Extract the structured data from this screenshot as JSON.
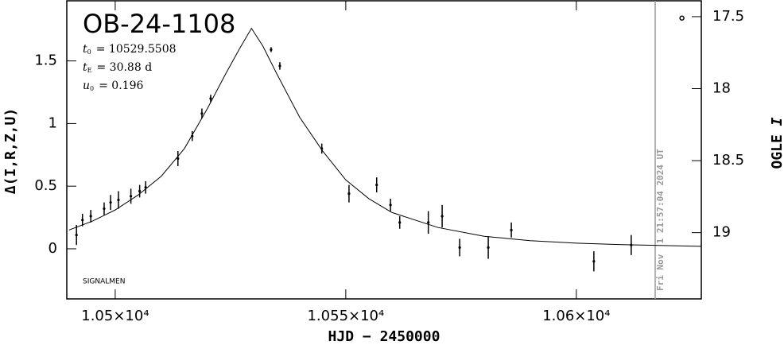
{
  "chart_data": {
    "type": "lightcurve",
    "title": "OB-24-1108",
    "params": [
      {
        "symbol": "t",
        "subscript": "0",
        "text": "= 10529.5508"
      },
      {
        "symbol": "t",
        "subscript": "E",
        "text": "= 30.88 d"
      },
      {
        "symbol": "u",
        "subscript": "0",
        "text": "= 0.196"
      }
    ],
    "credit": "SIGNALMEN",
    "x_label": "HJD − 2450000",
    "y_label": "Δ(I,R,Z,U)",
    "y2_label": {
      "name": "OGLE",
      "symbol": "I"
    },
    "date_line": {
      "x": 10617.1,
      "label": "Fri Nov  1 21:57:04 2024 UT",
      "color": "#999999"
    },
    "xlim": [
      10489.5,
      10627.1
    ],
    "xticks": [
      {
        "value": 10500,
        "label": "1.05×10⁴"
      },
      {
        "value": 10550,
        "label": "1.055×10⁴"
      },
      {
        "value": 10600,
        "label": "1.06×10⁴"
      }
    ],
    "ylim": [
      -0.4,
      1.98
    ],
    "yticks": [
      0,
      0.5,
      1,
      1.5
    ],
    "y2lim": [
      19.46,
      17.39
    ],
    "y2ticks": [
      17.5,
      18,
      18.5,
      19
    ],
    "grid": false,
    "color": "#000000",
    "points": {
      "x": [
        10491.6,
        10492.9,
        10494.7,
        10497.6,
        10499.0,
        10500.7,
        10503.4,
        10505.3,
        10506.6,
        10513.6,
        10516.7,
        10518.8,
        10520.7,
        10533.8,
        10535.7,
        10544.8,
        10550.7,
        10556.7,
        10559.7,
        10561.7,
        10567.9,
        10570.9,
        10574.7,
        10580.9,
        10585.9,
        10603.8,
        10611.9
      ],
      "values": [
        0.11,
        0.23,
        0.26,
        0.32,
        0.37,
        0.39,
        0.42,
        0.46,
        0.49,
        0.72,
        0.9,
        1.08,
        1.2,
        1.59,
        1.46,
        0.8,
        0.44,
        0.51,
        0.35,
        0.21,
        0.21,
        0.26,
        0.01,
        0.01,
        0.15,
        -0.1,
        0.03
      ],
      "errors": [
        0.08,
        0.05,
        0.05,
        0.05,
        0.06,
        0.07,
        0.06,
        0.05,
        0.05,
        0.06,
        0.04,
        0.04,
        0.03,
        0.02,
        0.03,
        0.04,
        0.07,
        0.06,
        0.05,
        0.05,
        0.09,
        0.09,
        0.07,
        0.09,
        0.06,
        0.08,
        0.08
      ]
    },
    "ogle_point": {
      "x": [
        10622.9
      ],
      "values": [
        17.51
      ],
      "axis": "y2"
    },
    "model": {
      "x": [
        10490,
        10495,
        10500,
        10505,
        10510,
        10515,
        10520,
        10524,
        10527,
        10529.55,
        10532,
        10535,
        10540,
        10545,
        10550,
        10555,
        10560,
        10570,
        10580,
        10590,
        10600,
        10610,
        10620,
        10627
      ],
      "values": [
        0.15,
        0.22,
        0.31,
        0.43,
        0.58,
        0.8,
        1.12,
        1.4,
        1.6,
        1.76,
        1.62,
        1.4,
        1.05,
        0.78,
        0.55,
        0.4,
        0.29,
        0.17,
        0.1,
        0.065,
        0.045,
        0.033,
        0.025,
        0.02
      ]
    }
  }
}
